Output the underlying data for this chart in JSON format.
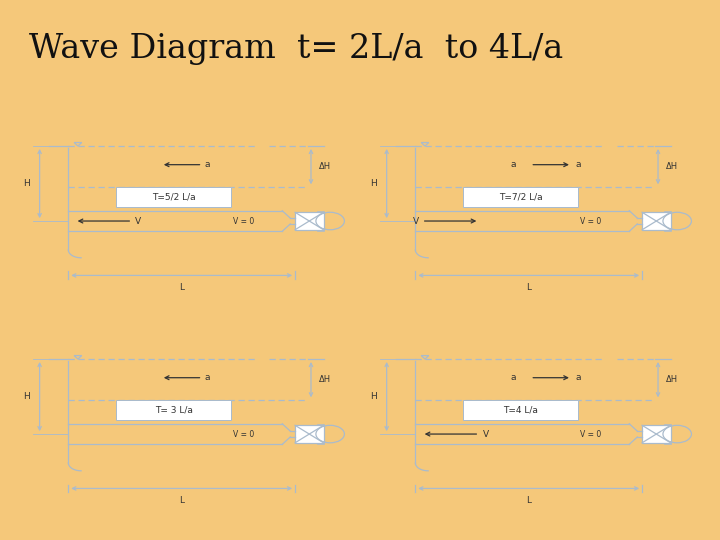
{
  "title": "Wave Diagram  t= 2L/a  to 4L/a",
  "bg_header": "#F5C87A",
  "bg_panel": "#FFFFFF",
  "separator_dark": "#222222",
  "separator_gold": "#C8A030",
  "diagram_color": "#AABBCC",
  "text_color": "#333333",
  "panels": [
    {
      "label": "T=5/2 L/a",
      "a_dir": "left",
      "v_dir": "left",
      "v_label": "V",
      "pipe_full": true
    },
    {
      "label": "T=7/2 L/a",
      "a_dir": "right",
      "v_dir": "right",
      "v_label": "V",
      "pipe_full": true
    },
    {
      "label": "T= 3 L/a",
      "a_dir": "left",
      "v_dir": "none",
      "v_label": "",
      "pipe_full": false
    },
    {
      "label": "T=4 L/a",
      "a_dir": "right",
      "v_dir": "left",
      "v_label": "V",
      "pipe_full": false
    }
  ]
}
